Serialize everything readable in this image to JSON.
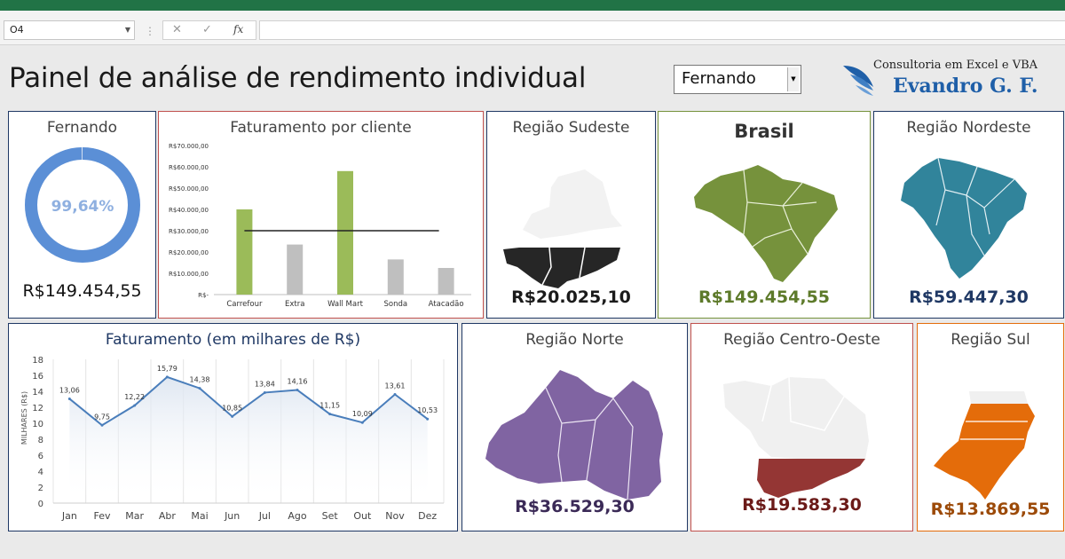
{
  "excel": {
    "name_box": "O4",
    "fx_label": "fx",
    "cancel_symbol": "✕",
    "enter_symbol": "✓"
  },
  "dashboard": {
    "title": "Painel de análise de rendimento individual",
    "selected_person": "Fernando"
  },
  "logo": {
    "line1": "Consultoria em Excel e VBA",
    "line2": "Evandro G. F."
  },
  "kpi": {
    "name": "Fernando",
    "percent_label": "99,64%",
    "percent_value": 99.64,
    "total": "R$149.454,55",
    "ring_color": "#5b8fd6",
    "pct_color": "#8fb0e0"
  },
  "regions": {
    "sudeste": {
      "title": "Região Sudeste",
      "value": "R$20.025,10",
      "color": "#262626",
      "value_color": "#1a1a1a"
    },
    "brasil": {
      "title": "Brasil",
      "value": "R$149.454,55",
      "color": "#76923c",
      "value_color": "#5d7a2a"
    },
    "nordeste": {
      "title": "Região Nordeste",
      "value": "R$59.447,30",
      "color": "#31849b",
      "value_color": "#1f3864"
    },
    "norte": {
      "title": "Região Norte",
      "value": "R$36.529,30",
      "color": "#8064a2",
      "value_color": "#3b2a57"
    },
    "centro_oeste": {
      "title": "Região Centro-Oeste",
      "value": "R$19.583,30",
      "color": "#943634",
      "value_color": "#6b1a18"
    },
    "sul": {
      "title": "Região Sul",
      "value": "R$13.869,55",
      "color": "#e46c0a",
      "value_color": "#9c4a08"
    }
  },
  "chart_data": [
    {
      "type": "bar",
      "title": "Faturamento por cliente",
      "categories": [
        "Carrefour",
        "Extra",
        "Wall Mart",
        "Sonda",
        "Atacadão"
      ],
      "values": [
        40000,
        23500,
        58000,
        16500,
        12500
      ],
      "bar_colors": [
        "#9bbb59",
        "#bfbfbf",
        "#9bbb59",
        "#bfbfbf",
        "#bfbfbf"
      ],
      "average_line": 30000,
      "ylim": [
        0,
        70000
      ],
      "y_ticks": [
        "R$-",
        "R$10.000,00",
        "R$20.000,00",
        "R$30.000,00",
        "R$40.000,00",
        "R$50.000,00",
        "R$60.000,00",
        "R$70.000,00"
      ],
      "grid": false
    },
    {
      "type": "line",
      "title": "Faturamento (em milhares de R$)",
      "ylabel": "MILHARES (R$)",
      "categories": [
        "Jan",
        "Fev",
        "Mar",
        "Abr",
        "Mai",
        "Jun",
        "Jul",
        "Ago",
        "Set",
        "Out",
        "Nov",
        "Dez"
      ],
      "values": [
        13.06,
        9.75,
        12.22,
        15.79,
        14.38,
        10.85,
        13.84,
        14.16,
        11.15,
        10.09,
        13.61,
        10.53
      ],
      "labels": [
        "13,06",
        "9,75",
        "12,22",
        "15,79",
        "14,38",
        "10,85",
        "13,84",
        "14,16",
        "11,15",
        "10,09",
        "13,61",
        "10,53"
      ],
      "ylim": [
        0,
        18
      ],
      "y_ticks": [
        "0",
        "2",
        "4",
        "6",
        "8",
        "10",
        "12",
        "14",
        "16",
        "18"
      ],
      "line_color": "#4a7ebb",
      "grid": true
    }
  ]
}
